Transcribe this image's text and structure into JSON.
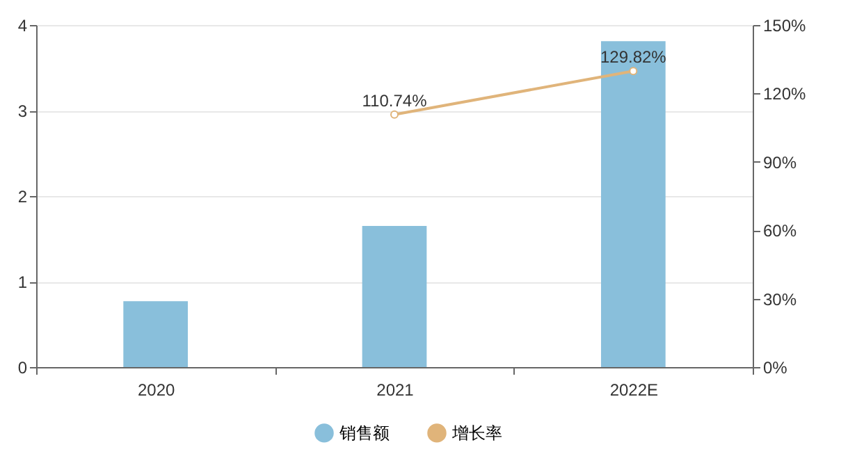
{
  "chart_data": {
    "type": "bar",
    "categories": [
      "2020",
      "2021",
      "2022E"
    ],
    "series": [
      {
        "name": "销售额",
        "color": "#89bfdb",
        "values": [
          0.77,
          1.65,
          3.81
        ]
      },
      {
        "name": "增长率",
        "type": "line",
        "axis": "y2",
        "color": "#e0b47a",
        "marker": "circle",
        "values": [
          null,
          110.74,
          129.82
        ],
        "value_labels": [
          null,
          "110.74%",
          "129.82%"
        ]
      }
    ],
    "ylim": [
      0,
      4
    ],
    "yticks": [
      0,
      1,
      2,
      3,
      4
    ],
    "y2lim": [
      0,
      150
    ],
    "y2ticks": [
      {
        "value": 0,
        "label": "0%"
      },
      {
        "value": 30,
        "label": "30%"
      },
      {
        "value": 60,
        "label": "60%"
      },
      {
        "value": 90,
        "label": "90%"
      },
      {
        "value": 120,
        "label": "120%"
      },
      {
        "value": 150,
        "label": "150%"
      }
    ],
    "grid": "y",
    "legend": "bottom"
  }
}
